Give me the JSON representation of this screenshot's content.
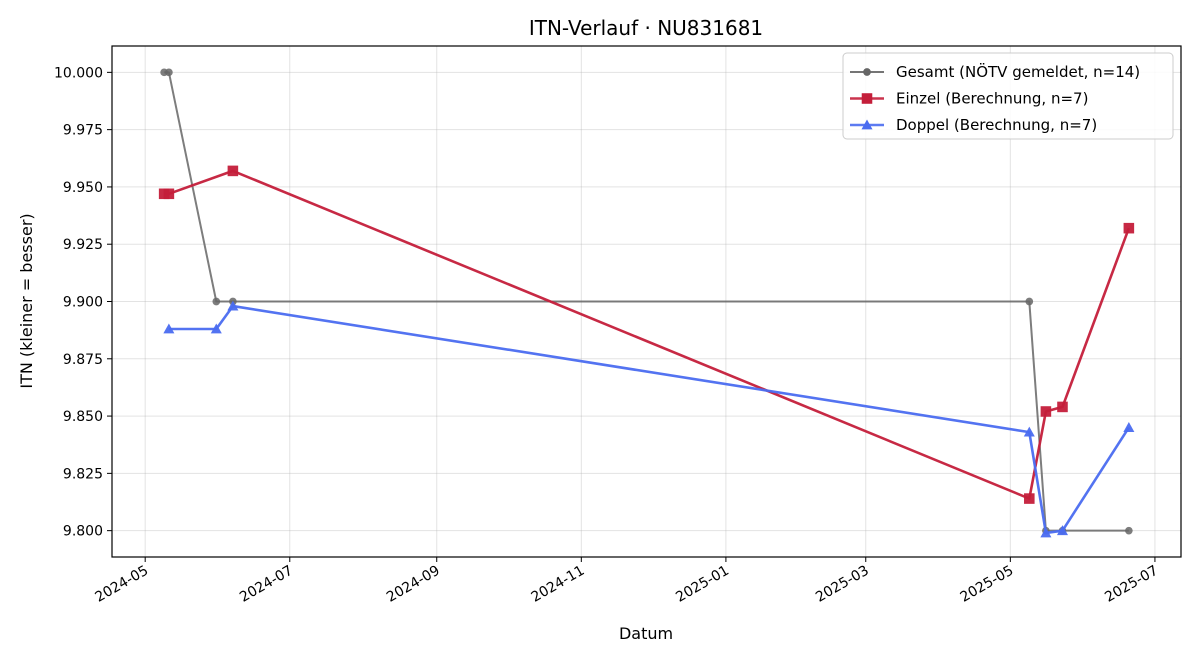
{
  "chart_data": {
    "type": "line",
    "title": "ITN-Verlauf · NU831681",
    "xlabel": "Datum",
    "ylabel": "ITN  (kleiner = besser)",
    "x_ticks": [
      "2024-05",
      "2024-07",
      "2024-09",
      "2024-11",
      "2025-01",
      "2025-03",
      "2025-05",
      "2025-07"
    ],
    "y_ticks": [
      "9.800",
      "9.825",
      "9.850",
      "9.875",
      "9.900",
      "9.925",
      "9.950",
      "9.975",
      "10.000"
    ],
    "xlim": [
      "2024-04-17",
      "2025-07-12"
    ],
    "ylim": [
      9.7885,
      10.0115
    ],
    "grid": true,
    "legend_position": "top-right",
    "series": [
      {
        "name": "Gesamt (NÖTV gemeldet, n=14)",
        "color": "#666666",
        "marker": "circle",
        "points": [
          {
            "x": "2024-05-09",
            "y": 10.0
          },
          {
            "x": "2024-05-11",
            "y": 10.0
          },
          {
            "x": "2024-05-31",
            "y": 9.9
          },
          {
            "x": "2024-06-07",
            "y": 9.9
          },
          {
            "x": "2025-05-09",
            "y": 9.9
          },
          {
            "x": "2025-05-16",
            "y": 9.8
          },
          {
            "x": "2025-05-23",
            "y": 9.8
          },
          {
            "x": "2025-06-20",
            "y": 9.8
          }
        ]
      },
      {
        "name": "Einzel (Berechnung, n=7)",
        "color": "#c41e3a",
        "marker": "square",
        "points": [
          {
            "x": "2024-05-09",
            "y": 9.947
          },
          {
            "x": "2024-05-11",
            "y": 9.947
          },
          {
            "x": "2024-06-07",
            "y": 9.957
          },
          {
            "x": "2025-05-09",
            "y": 9.814
          },
          {
            "x": "2025-05-16",
            "y": 9.852
          },
          {
            "x": "2025-05-23",
            "y": 9.854
          },
          {
            "x": "2025-06-20",
            "y": 9.932
          }
        ]
      },
      {
        "name": "Doppel (Berechnung, n=7)",
        "color": "#4a6cf0",
        "marker": "triangle",
        "points": [
          {
            "x": "2024-05-11",
            "y": 9.888
          },
          {
            "x": "2024-05-31",
            "y": 9.888
          },
          {
            "x": "2024-06-07",
            "y": 9.898
          },
          {
            "x": "2025-05-09",
            "y": 9.843
          },
          {
            "x": "2025-05-16",
            "y": 9.799
          },
          {
            "x": "2025-05-23",
            "y": 9.8
          },
          {
            "x": "2025-06-20",
            "y": 9.845
          }
        ]
      }
    ]
  }
}
